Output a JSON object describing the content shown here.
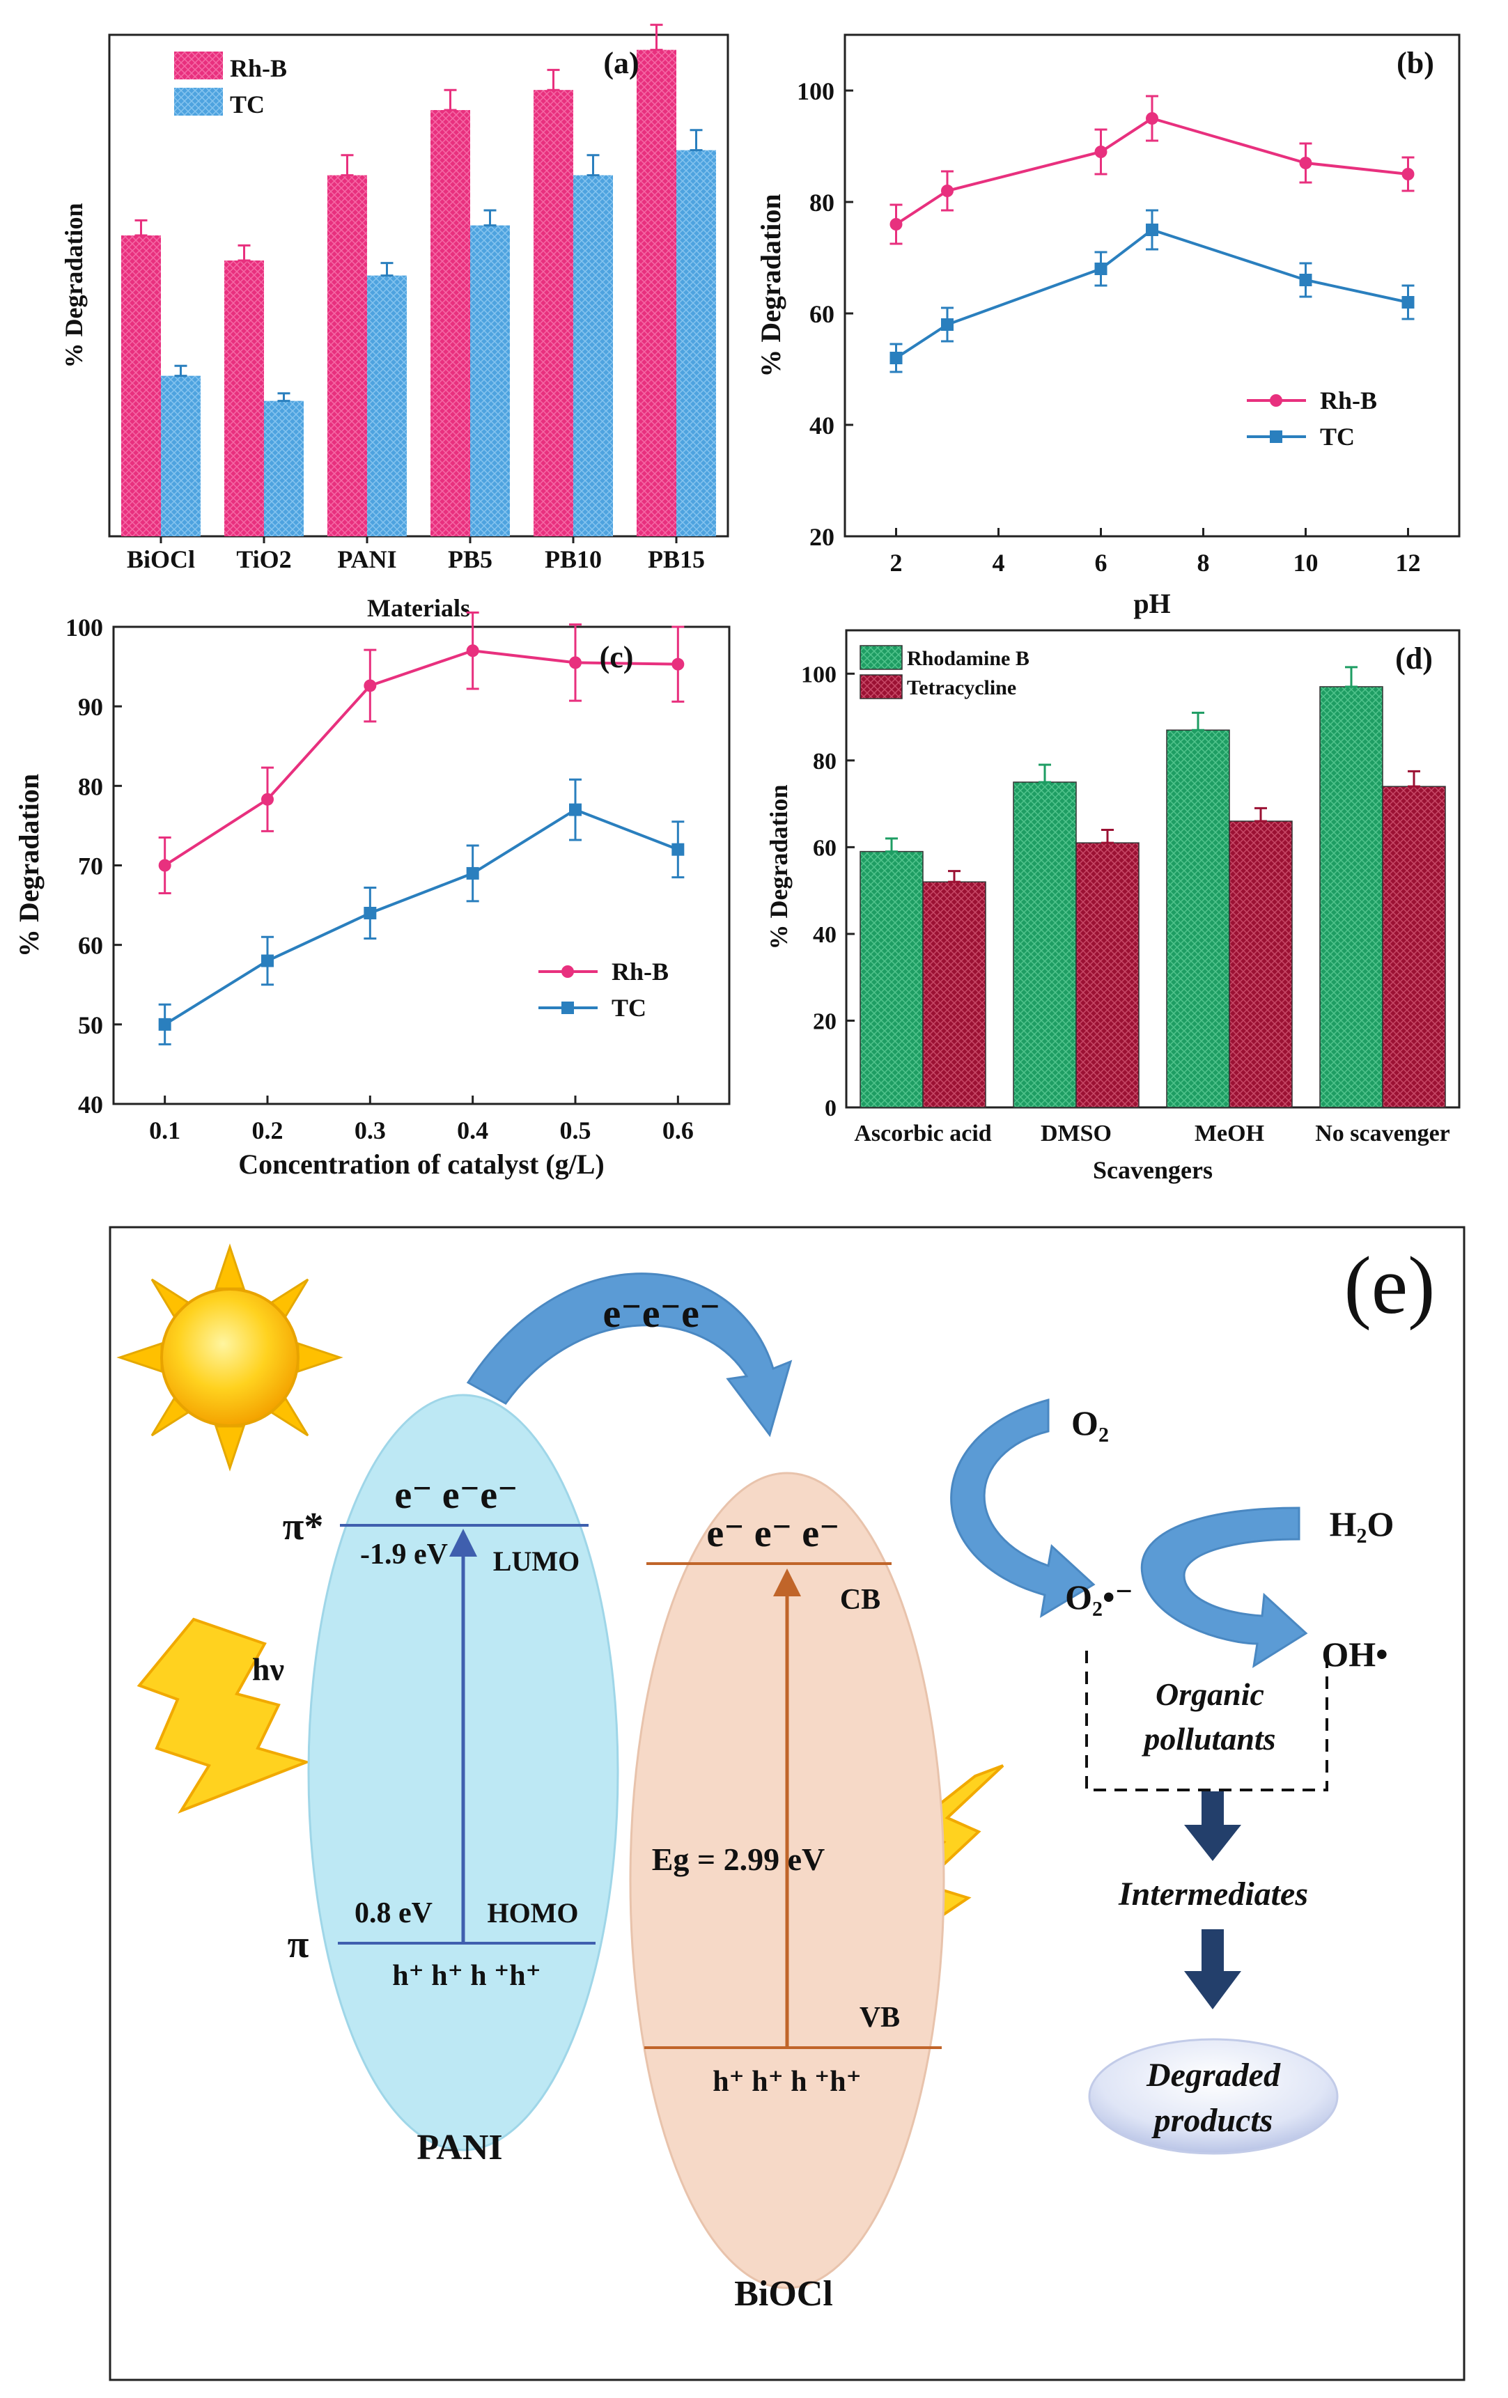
{
  "colors": {
    "rhb": "#e8307e",
    "tc": "#2a7fbe",
    "tc_bar": "#4ea3df",
    "rhodamine_bar": "#1e9d63",
    "tetracycline_bar": "#9b1133",
    "pani_fill": "#bde8f4",
    "biocl_fill": "#f6d9c7",
    "arrow_blue": "#5b9bd5",
    "dark_arrow": "#233f6b",
    "sun": "#ffc000"
  },
  "chart_data": [
    {
      "panel": "(a)",
      "type": "bar",
      "title": "",
      "xlabel": "Materials",
      "ylabel": "% Degradation",
      "categories": [
        "BiOCl",
        "TiO2",
        "PANI",
        "PB5",
        "PB10",
        "PB15"
      ],
      "ylim": [
        0,
        100
      ],
      "series": [
        {
          "name": "Rh-B",
          "values": [
            60,
            55,
            72,
            85,
            89,
            97
          ],
          "errors": [
            3,
            3,
            4,
            4,
            4,
            5
          ]
        },
        {
          "name": "TC",
          "values": [
            32,
            27,
            52,
            62,
            72,
            77
          ],
          "errors": [
            2,
            1.5,
            2.5,
            3,
            4,
            4
          ]
        }
      ],
      "legend": "top-left"
    },
    {
      "panel": "(b)",
      "type": "line",
      "xlabel": "pH",
      "ylabel": "% Degradation",
      "x": [
        2,
        3,
        6,
        7,
        10,
        12
      ],
      "xlim": [
        1,
        13
      ],
      "ylim": [
        20,
        110
      ],
      "xticks": [
        2,
        4,
        6,
        8,
        10,
        12
      ],
      "yticks": [
        20,
        40,
        60,
        80,
        100
      ],
      "series": [
        {
          "name": "Rh-B",
          "values": [
            76,
            82,
            89,
            95,
            87,
            85
          ],
          "errors": [
            3.5,
            3.5,
            4,
            4,
            3.5,
            3
          ]
        },
        {
          "name": "TC",
          "values": [
            52,
            58,
            68,
            75,
            66,
            62
          ],
          "errors": [
            2.5,
            3,
            3,
            3.5,
            3,
            3
          ]
        }
      ],
      "legend": "center-right"
    },
    {
      "panel": "(c)",
      "type": "line",
      "xlabel": "Concentration of catalyst (g/L)",
      "ylabel": "% Degradation",
      "x": [
        0.1,
        0.2,
        0.3,
        0.4,
        0.5,
        0.6
      ],
      "xlim": [
        0.05,
        0.65
      ],
      "ylim": [
        40,
        100
      ],
      "xticks": [
        "0.1",
        "0.2",
        "0.3",
        "0.4",
        "0.5",
        "0.6"
      ],
      "yticks": [
        40,
        50,
        60,
        70,
        80,
        90,
        100
      ],
      "series": [
        {
          "name": "Rh-B",
          "values": [
            70,
            78.3,
            92.6,
            97,
            95.5,
            95.3
          ],
          "errors": [
            3.5,
            4,
            4.5,
            4.8,
            4.8,
            4.7
          ]
        },
        {
          "name": "TC",
          "values": [
            50,
            58,
            64,
            69,
            77,
            72
          ],
          "errors": [
            2.5,
            3,
            3.2,
            3.5,
            3.8,
            3.5
          ]
        }
      ],
      "legend": "center-right"
    },
    {
      "panel": "(d)",
      "type": "bar",
      "xlabel": "Scavengers",
      "ylabel": "% Degradation",
      "categories": [
        "Ascorbic acid",
        "DMSO",
        "MeOH",
        "No scavenger"
      ],
      "ylim": [
        0,
        110
      ],
      "yticks": [
        0,
        20,
        40,
        60,
        80,
        100
      ],
      "series": [
        {
          "name": "Rhodamine B",
          "values": [
            59,
            75,
            87,
            97
          ],
          "errors": [
            3,
            4,
            4,
            4.5
          ]
        },
        {
          "name": "Tetracycline",
          "values": [
            52,
            61,
            66,
            74
          ],
          "errors": [
            2.5,
            3,
            3,
            3.5
          ]
        }
      ],
      "legend": "top-left"
    }
  ],
  "diagram": {
    "label": "(e)",
    "electrons_transfer": "e⁻e⁻e⁻",
    "pani_name": "PANI",
    "biocl_name": "BiOCl",
    "pani_electrons": "e⁻ e⁻e⁻",
    "biocl_electrons": "e⁻ e⁻ e⁻",
    "pi_star": "π*",
    "pi": "π",
    "lumo_energy": "-1.9 eV",
    "lumo": "LUMO",
    "homo_energy": "0.8 eV",
    "homo": "HOMO",
    "hv": "hν",
    "cb": "CB",
    "vb": "VB",
    "band_gap": "Eg = 2.99 eV",
    "pani_holes": "h⁺ h⁺ h ⁺h⁺",
    "biocl_holes": "h⁺ h⁺ h ⁺h⁺",
    "o2": "O₂",
    "h2o": "H₂O",
    "superoxide": "O₂•⁻",
    "hydroxyl": "OH•",
    "organic_pollutants": [
      "Organic",
      "pollutants"
    ],
    "intermediates": "Intermediates",
    "degraded_products": [
      "Degraded",
      "products"
    ]
  }
}
